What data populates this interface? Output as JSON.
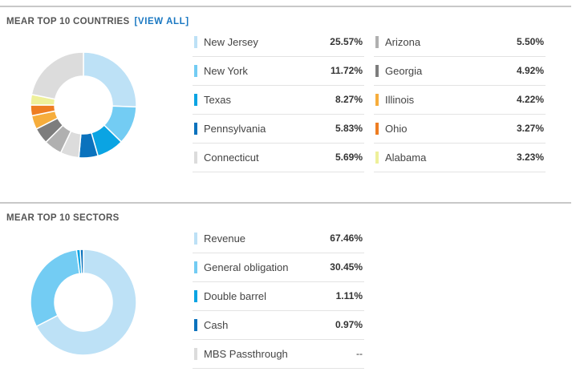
{
  "colors": {
    "background": "#ffffff",
    "divider": "#c8c8c8",
    "row_border": "#e3e3e3",
    "accent_link": "#1a78c2",
    "title_text": "#555555",
    "donut_hole": "#ffffff"
  },
  "countries": {
    "title": "MEAR TOP 10 COUNTRIES",
    "view_all_label": "[VIEW ALL]",
    "items": [
      {
        "label": "New Jersey",
        "value": "25.57%",
        "pct": 25.57,
        "color": "#bde1f6"
      },
      {
        "label": "New York",
        "value": "11.72%",
        "pct": 11.72,
        "color": "#73ccf3"
      },
      {
        "label": "Texas",
        "value": "8.27%",
        "pct": 8.27,
        "color": "#0aa4e3"
      },
      {
        "label": "Pennsylvania",
        "value": "5.83%",
        "pct": 5.83,
        "color": "#0a72bd"
      },
      {
        "label": "Connecticut",
        "value": "5.69%",
        "pct": 5.69,
        "color": "#dcdcdc"
      },
      {
        "label": "Arizona",
        "value": "5.50%",
        "pct": 5.5,
        "color": "#b0b0b0"
      },
      {
        "label": "Georgia",
        "value": "4.92%",
        "pct": 4.92,
        "color": "#7d7d7d"
      },
      {
        "label": "Illinois",
        "value": "4.22%",
        "pct": 4.22,
        "color": "#f6ad3c"
      },
      {
        "label": "Ohio",
        "value": "3.27%",
        "pct": 3.27,
        "color": "#ee7d22"
      },
      {
        "label": "Alabama",
        "value": "3.23%",
        "pct": 3.23,
        "color": "#eef09a"
      }
    ],
    "other_color": "#dcdcdc"
  },
  "sectors": {
    "title": "MEAR TOP 10 SECTORS",
    "items": [
      {
        "label": "Revenue",
        "value": "67.46%",
        "pct": 67.46,
        "color": "#bde1f6"
      },
      {
        "label": "General obligation",
        "value": "30.45%",
        "pct": 30.45,
        "color": "#73ccf3"
      },
      {
        "label": "Double barrel",
        "value": "1.11%",
        "pct": 1.11,
        "color": "#0aa4e3"
      },
      {
        "label": "Cash",
        "value": "0.97%",
        "pct": 0.97,
        "color": "#0a72bd"
      },
      {
        "label": "MBS Passthrough",
        "value": "--",
        "pct": 0,
        "color": "#dcdcdc"
      }
    ]
  }
}
